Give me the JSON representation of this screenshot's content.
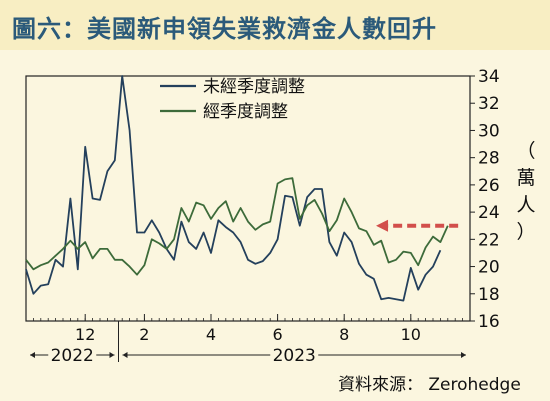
{
  "title": "圖六：美國新申領失業救濟金人數回升",
  "source": "資料來源： Zerohedge",
  "chart_data": {
    "type": "line",
    "title": "圖六：美國新申領失業救濟金人數回升",
    "ylabel": "（萬人）",
    "ylabel_chars": [
      "（",
      "萬",
      "人",
      "）"
    ],
    "ylim": [
      16,
      34
    ],
    "yticks": [
      16,
      18,
      20,
      22,
      24,
      26,
      28,
      30,
      32,
      34
    ],
    "ytick_labels": [
      "16",
      "18",
      "20",
      "22",
      "24",
      "26",
      "28",
      "30",
      "32",
      "34"
    ],
    "xtick_labels": [
      {
        "label": "12",
        "week": 8
      },
      {
        "label": "2",
        "week": 16
      },
      {
        "label": "4",
        "week": 25
      },
      {
        "label": "6",
        "week": 34
      },
      {
        "label": "8",
        "week": 43
      },
      {
        "label": "10",
        "week": 52
      }
    ],
    "year_labels": [
      {
        "label": "2022",
        "from_week": 0,
        "to_week": 12.5
      },
      {
        "label": "2023",
        "from_week": 12.5,
        "to_week": 60
      }
    ],
    "legend": {
      "position": "top-center"
    },
    "series": [
      {
        "name": "未經季度調整",
        "color": "#24405c",
        "values": [
          19.8,
          18.0,
          18.6,
          18.7,
          20.5,
          20.0,
          25.0,
          19.8,
          28.8,
          25.0,
          24.9,
          27.0,
          27.8,
          34.0,
          30.0,
          22.5,
          22.5,
          23.4,
          22.5,
          21.3,
          20.5,
          23.3,
          21.8,
          21.3,
          22.5,
          21.0,
          23.4,
          22.9,
          22.5,
          21.8,
          20.5,
          20.2,
          20.4,
          21.0,
          22.0,
          25.2,
          25.1,
          23.0,
          25.1,
          25.7,
          25.7,
          21.8,
          20.8,
          22.5,
          21.8,
          20.2,
          19.4,
          19.1,
          17.6,
          17.7,
          17.6,
          17.5,
          19.9,
          18.3,
          19.4,
          20.0,
          21.2
        ]
      },
      {
        "name": "經季度調整",
        "color": "#3d6b3a",
        "values": [
          20.5,
          19.8,
          20.1,
          20.3,
          20.8,
          21.3,
          21.9,
          21.3,
          21.8,
          20.6,
          21.3,
          21.3,
          20.5,
          20.5,
          20.0,
          19.4,
          20.1,
          22.0,
          21.7,
          21.3,
          22.0,
          24.3,
          23.3,
          24.7,
          24.5,
          23.5,
          24.3,
          24.8,
          23.3,
          24.3,
          23.3,
          22.7,
          23.1,
          23.3,
          26.1,
          26.4,
          26.5,
          23.5,
          24.5,
          24.9,
          23.9,
          22.6,
          23.4,
          25.0,
          24.0,
          22.8,
          22.6,
          21.6,
          21.9,
          20.3,
          20.5,
          21.1,
          21.0,
          20.1,
          21.4,
          22.2,
          21.8,
          23.0
        ]
      }
    ],
    "annotation": {
      "type": "dashed-arrow",
      "color": "#d24f4b",
      "y": 23.0,
      "from_week": 58.4,
      "to_week": 47.3
    }
  }
}
